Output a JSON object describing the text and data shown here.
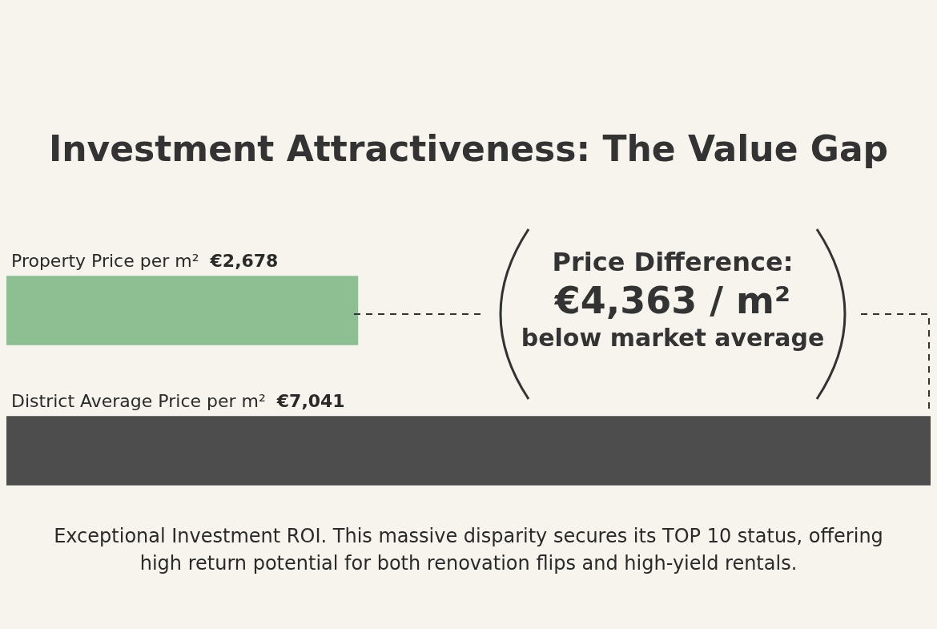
{
  "chart_data": {
    "type": "bar",
    "orientation": "horizontal",
    "title": "Investment Attractiveness: The Value Gap",
    "categories": [
      "Property Price per m²",
      "District Average Price per m²"
    ],
    "values": [
      2678,
      7041
    ],
    "value_labels": [
      "€2,678",
      "€7,041"
    ],
    "colors": [
      "#8dbf92",
      "#4d4d4d"
    ],
    "annotations": [
      "Price Difference:",
      "€4,363 / m²",
      "below market average",
      "Exceptional Investment ROI. This massive disparity secures its TOP 10 status, offering high return potential for both renovation flips and high-yield rentals."
    ]
  }
}
